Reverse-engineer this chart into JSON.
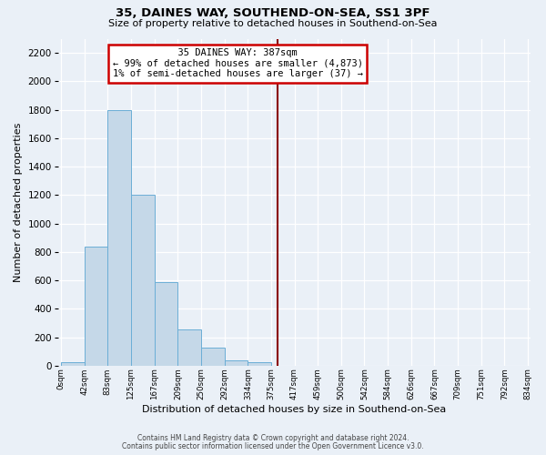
{
  "title": "35, DAINES WAY, SOUTHEND-ON-SEA, SS1 3PF",
  "subtitle": "Size of property relative to detached houses in Southend-on-Sea",
  "xlabel": "Distribution of detached houses by size in Southend-on-Sea",
  "ylabel": "Number of detached properties",
  "bar_edges": [
    0,
    42,
    83,
    125,
    167,
    209,
    250,
    292,
    334,
    375,
    417,
    459,
    500,
    542,
    584,
    626,
    667,
    709,
    751,
    792,
    834
  ],
  "bar_heights": [
    25,
    840,
    1800,
    1200,
    590,
    255,
    125,
    40,
    25,
    0,
    0,
    0,
    0,
    0,
    0,
    0,
    0,
    0,
    0,
    0
  ],
  "bar_color": "#c5d8e8",
  "bar_edge_color": "#6baed6",
  "vline_x": 387,
  "vline_color": "#8b0000",
  "ylim": [
    0,
    2300
  ],
  "yticks": [
    0,
    200,
    400,
    600,
    800,
    1000,
    1200,
    1400,
    1600,
    1800,
    2000,
    2200
  ],
  "xtick_labels": [
    "0sqm",
    "42sqm",
    "83sqm",
    "125sqm",
    "167sqm",
    "209sqm",
    "250sqm",
    "292sqm",
    "334sqm",
    "375sqm",
    "417sqm",
    "459sqm",
    "500sqm",
    "542sqm",
    "584sqm",
    "626sqm",
    "667sqm",
    "709sqm",
    "751sqm",
    "792sqm",
    "834sqm"
  ],
  "annotation_title": "35 DAINES WAY: 387sqm",
  "annotation_line1": "← 99% of detached houses are smaller (4,873)",
  "annotation_line2": "1% of semi-detached houses are larger (37) →",
  "annotation_box_color": "#ffffff",
  "annotation_box_edgecolor": "#cc0000",
  "footnote1": "Contains HM Land Registry data © Crown copyright and database right 2024.",
  "footnote2": "Contains public sector information licensed under the Open Government Licence v3.0.",
  "bg_color": "#eaf0f7",
  "grid_color": "#ffffff"
}
